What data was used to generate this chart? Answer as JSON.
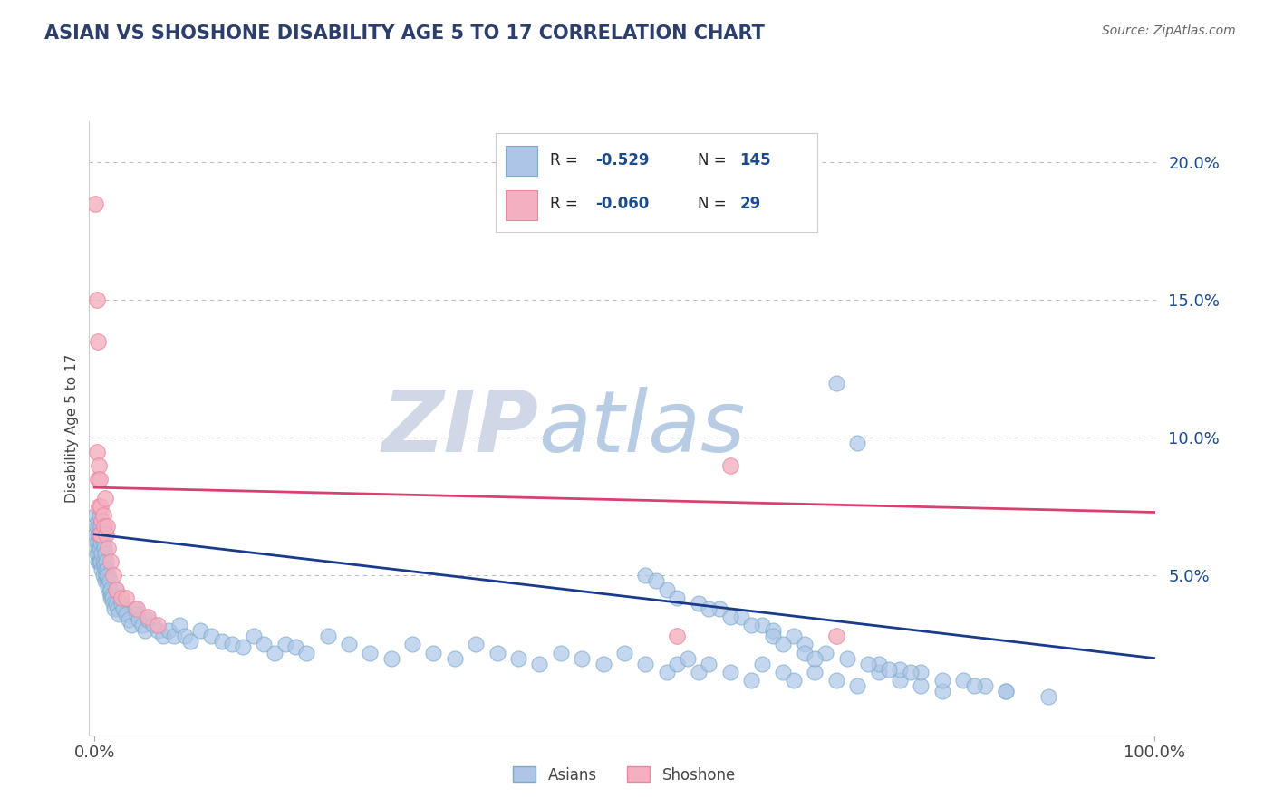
{
  "title": "ASIAN VS SHOSHONE DISABILITY AGE 5 TO 17 CORRELATION CHART",
  "source": "Source: ZipAtlas.com",
  "ylabel": "Disability Age 5 to 17",
  "xlim": [
    -0.005,
    1.005
  ],
  "ylim": [
    -0.008,
    0.215
  ],
  "xtick_labels": [
    "0.0%",
    "100.0%"
  ],
  "xtick_pos": [
    0.0,
    1.0
  ],
  "ytick_labels": [
    "5.0%",
    "10.0%",
    "15.0%",
    "20.0%"
  ],
  "ytick_pos": [
    0.05,
    0.1,
    0.15,
    0.2
  ],
  "asian_color": "#adc6e8",
  "asian_edge_color": "#7aaac8",
  "shoshone_color": "#f4b0c0",
  "shoshone_edge_color": "#e888a0",
  "asian_line_color": "#1a3a8c",
  "shoshone_line_color": "#d84070",
  "legend_R_color": "#1a4a8c",
  "legend_text_color": "#222222",
  "background_color": "#ffffff",
  "title_color": "#2c3e6b",
  "source_color": "#666666",
  "watermark_ZIP_color": "#d0d8e8",
  "watermark_atlas_color": "#b8cce4",
  "asian_trend_x0": 0.0,
  "asian_trend_x1": 1.0,
  "asian_trend_y0": 0.065,
  "asian_trend_y1": 0.02,
  "shoshone_trend_x0": 0.0,
  "shoshone_trend_x1": 1.0,
  "shoshone_trend_y0": 0.082,
  "shoshone_trend_y1": 0.073,
  "asian_x": [
    0.001,
    0.001,
    0.002,
    0.002,
    0.002,
    0.003,
    0.003,
    0.003,
    0.003,
    0.004,
    0.004,
    0.004,
    0.005,
    0.005,
    0.005,
    0.005,
    0.006,
    0.006,
    0.006,
    0.007,
    0.007,
    0.007,
    0.008,
    0.008,
    0.008,
    0.009,
    0.009,
    0.01,
    0.01,
    0.01,
    0.011,
    0.011,
    0.012,
    0.012,
    0.013,
    0.013,
    0.014,
    0.014,
    0.015,
    0.015,
    0.016,
    0.017,
    0.018,
    0.019,
    0.02,
    0.02,
    0.022,
    0.023,
    0.025,
    0.027,
    0.03,
    0.032,
    0.035,
    0.038,
    0.04,
    0.042,
    0.045,
    0.048,
    0.05,
    0.055,
    0.06,
    0.065,
    0.07,
    0.075,
    0.08,
    0.085,
    0.09,
    0.1,
    0.11,
    0.12,
    0.13,
    0.14,
    0.15,
    0.16,
    0.17,
    0.18,
    0.19,
    0.2,
    0.22,
    0.24,
    0.26,
    0.28,
    0.3,
    0.32,
    0.34,
    0.36,
    0.38,
    0.4,
    0.42,
    0.44,
    0.46,
    0.48,
    0.5,
    0.52,
    0.54,
    0.55,
    0.56,
    0.57,
    0.58,
    0.6,
    0.62,
    0.63,
    0.65,
    0.66,
    0.68,
    0.7,
    0.72,
    0.74,
    0.76,
    0.78,
    0.8,
    0.82,
    0.84,
    0.86,
    0.52,
    0.54,
    0.57,
    0.59,
    0.61,
    0.63,
    0.64,
    0.66,
    0.67,
    0.69,
    0.7,
    0.71,
    0.72,
    0.74,
    0.76,
    0.78,
    0.53,
    0.55,
    0.58,
    0.6,
    0.62,
    0.64,
    0.65,
    0.67,
    0.68,
    0.73,
    0.75,
    0.77,
    0.8,
    0.83,
    0.86,
    0.9
  ],
  "asian_y": [
    0.072,
    0.065,
    0.068,
    0.062,
    0.058,
    0.07,
    0.065,
    0.06,
    0.055,
    0.068,
    0.062,
    0.058,
    0.072,
    0.065,
    0.06,
    0.055,
    0.068,
    0.062,
    0.055,
    0.065,
    0.058,
    0.052,
    0.062,
    0.055,
    0.05,
    0.06,
    0.054,
    0.058,
    0.052,
    0.048,
    0.055,
    0.05,
    0.052,
    0.048,
    0.05,
    0.046,
    0.048,
    0.044,
    0.045,
    0.042,
    0.043,
    0.042,
    0.04,
    0.038,
    0.045,
    0.04,
    0.038,
    0.036,
    0.04,
    0.038,
    0.036,
    0.034,
    0.032,
    0.038,
    0.036,
    0.034,
    0.032,
    0.03,
    0.034,
    0.032,
    0.03,
    0.028,
    0.03,
    0.028,
    0.032,
    0.028,
    0.026,
    0.03,
    0.028,
    0.026,
    0.025,
    0.024,
    0.028,
    0.025,
    0.022,
    0.025,
    0.024,
    0.022,
    0.028,
    0.025,
    0.022,
    0.02,
    0.025,
    0.022,
    0.02,
    0.025,
    0.022,
    0.02,
    0.018,
    0.022,
    0.02,
    0.018,
    0.022,
    0.018,
    0.015,
    0.018,
    0.02,
    0.015,
    0.018,
    0.015,
    0.012,
    0.018,
    0.015,
    0.012,
    0.015,
    0.012,
    0.01,
    0.015,
    0.012,
    0.01,
    0.008,
    0.012,
    0.01,
    0.008,
    0.05,
    0.045,
    0.04,
    0.038,
    0.035,
    0.032,
    0.03,
    0.028,
    0.025,
    0.022,
    0.12,
    0.02,
    0.098,
    0.018,
    0.016,
    0.015,
    0.048,
    0.042,
    0.038,
    0.035,
    0.032,
    0.028,
    0.025,
    0.022,
    0.02,
    0.018,
    0.016,
    0.015,
    0.012,
    0.01,
    0.008,
    0.006
  ],
  "shoshone_x": [
    0.001,
    0.002,
    0.002,
    0.003,
    0.003,
    0.004,
    0.004,
    0.005,
    0.005,
    0.006,
    0.006,
    0.007,
    0.008,
    0.009,
    0.01,
    0.011,
    0.012,
    0.013,
    0.015,
    0.018,
    0.02,
    0.025,
    0.03,
    0.04,
    0.05,
    0.06,
    0.55,
    0.6,
    0.7
  ],
  "shoshone_y": [
    0.185,
    0.15,
    0.095,
    0.135,
    0.085,
    0.09,
    0.075,
    0.085,
    0.065,
    0.075,
    0.065,
    0.07,
    0.072,
    0.068,
    0.078,
    0.065,
    0.068,
    0.06,
    0.055,
    0.05,
    0.045,
    0.042,
    0.042,
    0.038,
    0.035,
    0.032,
    0.028,
    0.09,
    0.028
  ]
}
